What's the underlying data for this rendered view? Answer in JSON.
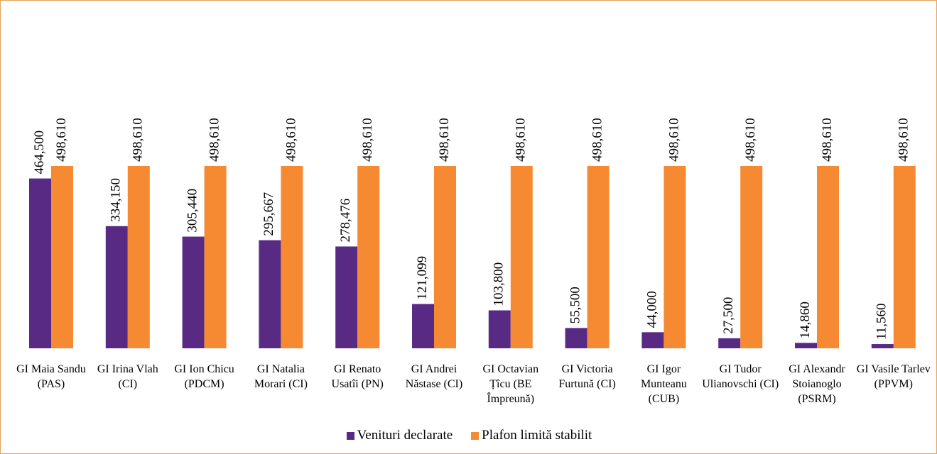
{
  "chart_data": {
    "type": "bar",
    "categories": [
      "GI Maia Sandu (PAS)",
      "GI Irina Vlah (CI)",
      "GI Ion Chicu (PDCM)",
      "GI Natalia Morari (CI)",
      "GI Renato Usatîi (PN)",
      "GI Andrei Năstase (CI)",
      "GI Octavian Țîcu (BE Împreună)",
      "GI Victoria Furtună (CI)",
      "GI Igor Munteanu (CUB)",
      "GI Tudor Ulianovschi (CI)",
      "GI Alexandr Stoianoglo (PSRM)",
      "GI Vasile Tarlev (PPVM)"
    ],
    "series": [
      {
        "name": "Venituri declarate",
        "color": "#582a84",
        "values": [
          464500,
          334150,
          305440,
          295667,
          278476,
          121099,
          103800,
          55500,
          44000,
          27500,
          14860,
          11560
        ],
        "value_labels": [
          "464,500",
          "334,150",
          "305,440",
          "295,667",
          "278,476",
          "121,099",
          "103,800",
          "55,500",
          "44,000",
          "27,500",
          "14,860",
          "11,560"
        ]
      },
      {
        "name": "Plafon limită stabilit",
        "color": "#f68a32",
        "values": [
          498610,
          498610,
          498610,
          498610,
          498610,
          498610,
          498610,
          498610,
          498610,
          498610,
          498610,
          498610
        ],
        "value_labels": [
          "498,610",
          "498,610",
          "498,610",
          "498,610",
          "498,610",
          "498,610",
          "498,610",
          "498,610",
          "498,610",
          "498,610",
          "498,610",
          "498,610"
        ]
      }
    ],
    "legend": "bottom"
  }
}
